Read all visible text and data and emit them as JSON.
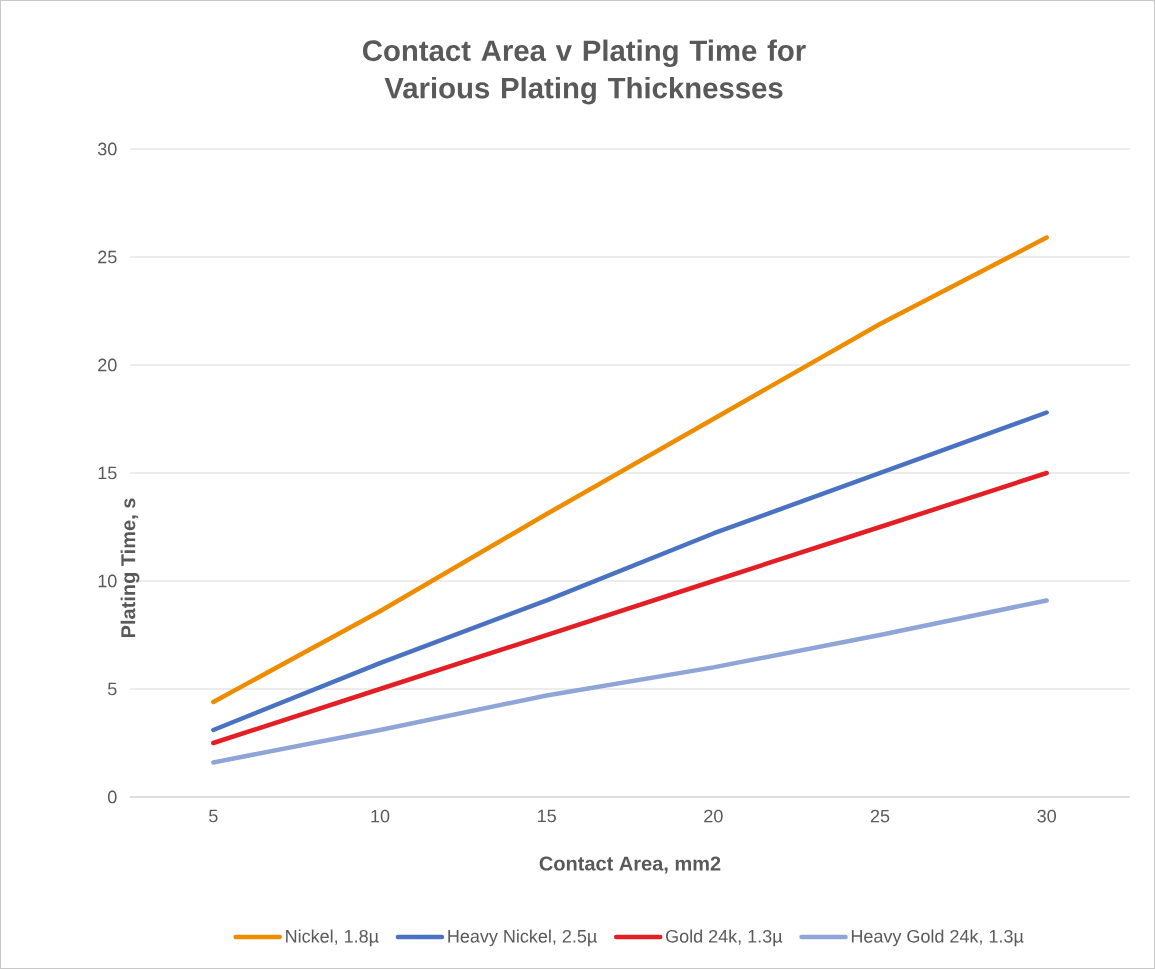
{
  "chart_data": {
    "type": "line",
    "title": "Contact Area v Plating Time for Various Plating Thicknesses",
    "xlabel": "Contact Area, mm2",
    "ylabel": "Plating Time, s",
    "categories": [
      "5",
      "10",
      "15",
      "20",
      "25",
      "30"
    ],
    "series": [
      {
        "name": "Nickel, 1.8µ",
        "color": "#ee8c00",
        "values": [
          4.4,
          8.6,
          13.1,
          17.5,
          21.9,
          25.9
        ]
      },
      {
        "name": "Heavy Nickel, 2.5µ",
        "color": "#4a72c2",
        "values": [
          3.1,
          6.2,
          9.1,
          12.2,
          15.0,
          17.8
        ]
      },
      {
        "name": "Gold 24k, 1.3µ",
        "color": "#e31f26",
        "values": [
          2.5,
          5.0,
          7.5,
          10.0,
          12.5,
          15.0
        ]
      },
      {
        "name": "Heavy Gold 24k, 1.3µ",
        "color": "#8fa5d8",
        "values": [
          1.6,
          3.1,
          4.7,
          6.0,
          7.5,
          9.1
        ]
      }
    ],
    "ylim": [
      0,
      30
    ],
    "yticks": [
      0,
      5,
      10,
      15,
      20,
      25,
      30
    ],
    "grid": "y",
    "legend": "bottom",
    "marker": "none",
    "line_style": "solid"
  }
}
